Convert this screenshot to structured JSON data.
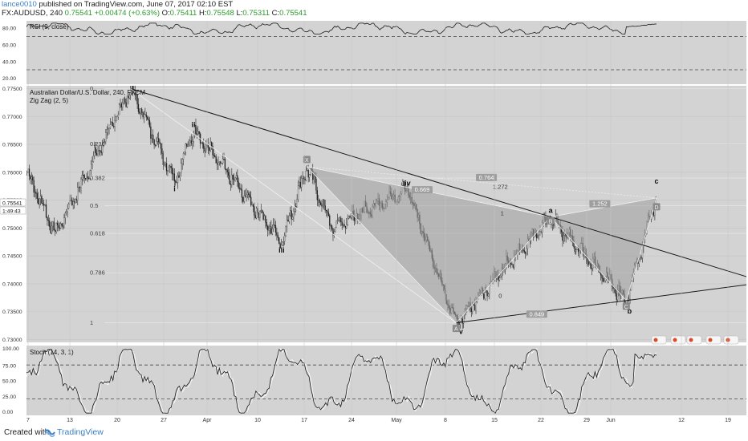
{
  "header": {
    "author": "lance0010",
    "published_text": " published on TradingView.com, June 07, 2017 02:10 EST",
    "symbol": "FX:AUDUSD, 240",
    "last": "0.75541",
    "change": "+0.00474 (+0.63%)",
    "o_label": "O:",
    "o_val": "0.75411",
    "h_label": "H:",
    "h_val": "0.75548",
    "l_label": "L:",
    "l_val": "0.75311",
    "c_label": "C:",
    "c_val": "0.75541"
  },
  "rsi": {
    "title": "RSI (9, close)",
    "ticks": [
      "80.00",
      "60.00",
      "40.00",
      "20.00"
    ],
    "levels": [
      70,
      30
    ]
  },
  "main": {
    "title": "Australian Dollar/U.S. Dollar, 240, FXCM",
    "indicator": "Zig Zag (2, 5)",
    "price_ticks": [
      "0.77500",
      "0.77000",
      "0.76500",
      "0.76000",
      "0.75500",
      "0.75000",
      "0.74500",
      "0.74000",
      "0.73500",
      "0.73000"
    ],
    "price_tag": "0.75541",
    "time_tag": "1:49:43",
    "fib_labels": [
      "0",
      "0.236",
      "0.382",
      "0.5",
      "0.618",
      "0.786",
      "1"
    ],
    "wave_labels": [
      "ii",
      "i",
      "iii",
      "iv",
      "v",
      "a",
      "b",
      "c"
    ],
    "pattern_points": [
      "X",
      "A",
      "B",
      "C",
      "D"
    ],
    "ratios": [
      "0.764",
      "1.272",
      "0.669",
      "1.252",
      "0.849",
      "1",
      "0"
    ]
  },
  "stoch": {
    "title": "Stoch (14, 3, 1)",
    "ticks": [
      "100.00",
      "75.00",
      "50.00",
      "25.00",
      "0.00"
    ],
    "levels": [
      80,
      20
    ]
  },
  "time_axis": [
    "7",
    "13",
    "20",
    "27",
    "Apr",
    "10",
    "17",
    "24",
    "May",
    "8",
    "15",
    "22",
    "29",
    "Jun",
    "12",
    "19"
  ],
  "footer": {
    "created": "Created with",
    "brand": "TradingView"
  },
  "colors": {
    "panel_bg": "#d3d3d3",
    "grid": "#bfbfbf",
    "candle": "#222222",
    "pattern_fill": "#9e9e9e",
    "level_dash": "#444444"
  },
  "chart_data": {
    "type": "candlestick",
    "symbol": "FX:AUDUSD",
    "interval": "240",
    "ylim": [
      0.7295,
      0.7755
    ],
    "zigzag_pivots": [
      {
        "label": "",
        "price": 0.76
      },
      {
        "label": "",
        "price": 0.749
      },
      {
        "label": "0",
        "price": 0.775
      },
      {
        "label": "i",
        "price": 0.7585
      },
      {
        "label": "ii",
        "price": 0.7675
      },
      {
        "label": "iii",
        "price": 0.7475
      },
      {
        "label": "X",
        "price": 0.761
      },
      {
        "label": "",
        "price": 0.75
      },
      {
        "label": "iv",
        "price": 0.757
      },
      {
        "label": "A / v",
        "price": 0.733
      },
      {
        "label": "B / a",
        "price": 0.752
      },
      {
        "label": "C / b",
        "price": 0.737
      },
      {
        "label": "D / c",
        "price": 0.7554
      }
    ],
    "harmonic_ratios": {
      "XB": "0.669",
      "AC": "0.849",
      "BD": "1.252",
      "XD": "1.272",
      "XC": "0.764"
    },
    "rsi_levels": [
      70,
      30
    ],
    "stoch_levels": [
      80,
      20
    ],
    "last_price": 0.75541
  }
}
